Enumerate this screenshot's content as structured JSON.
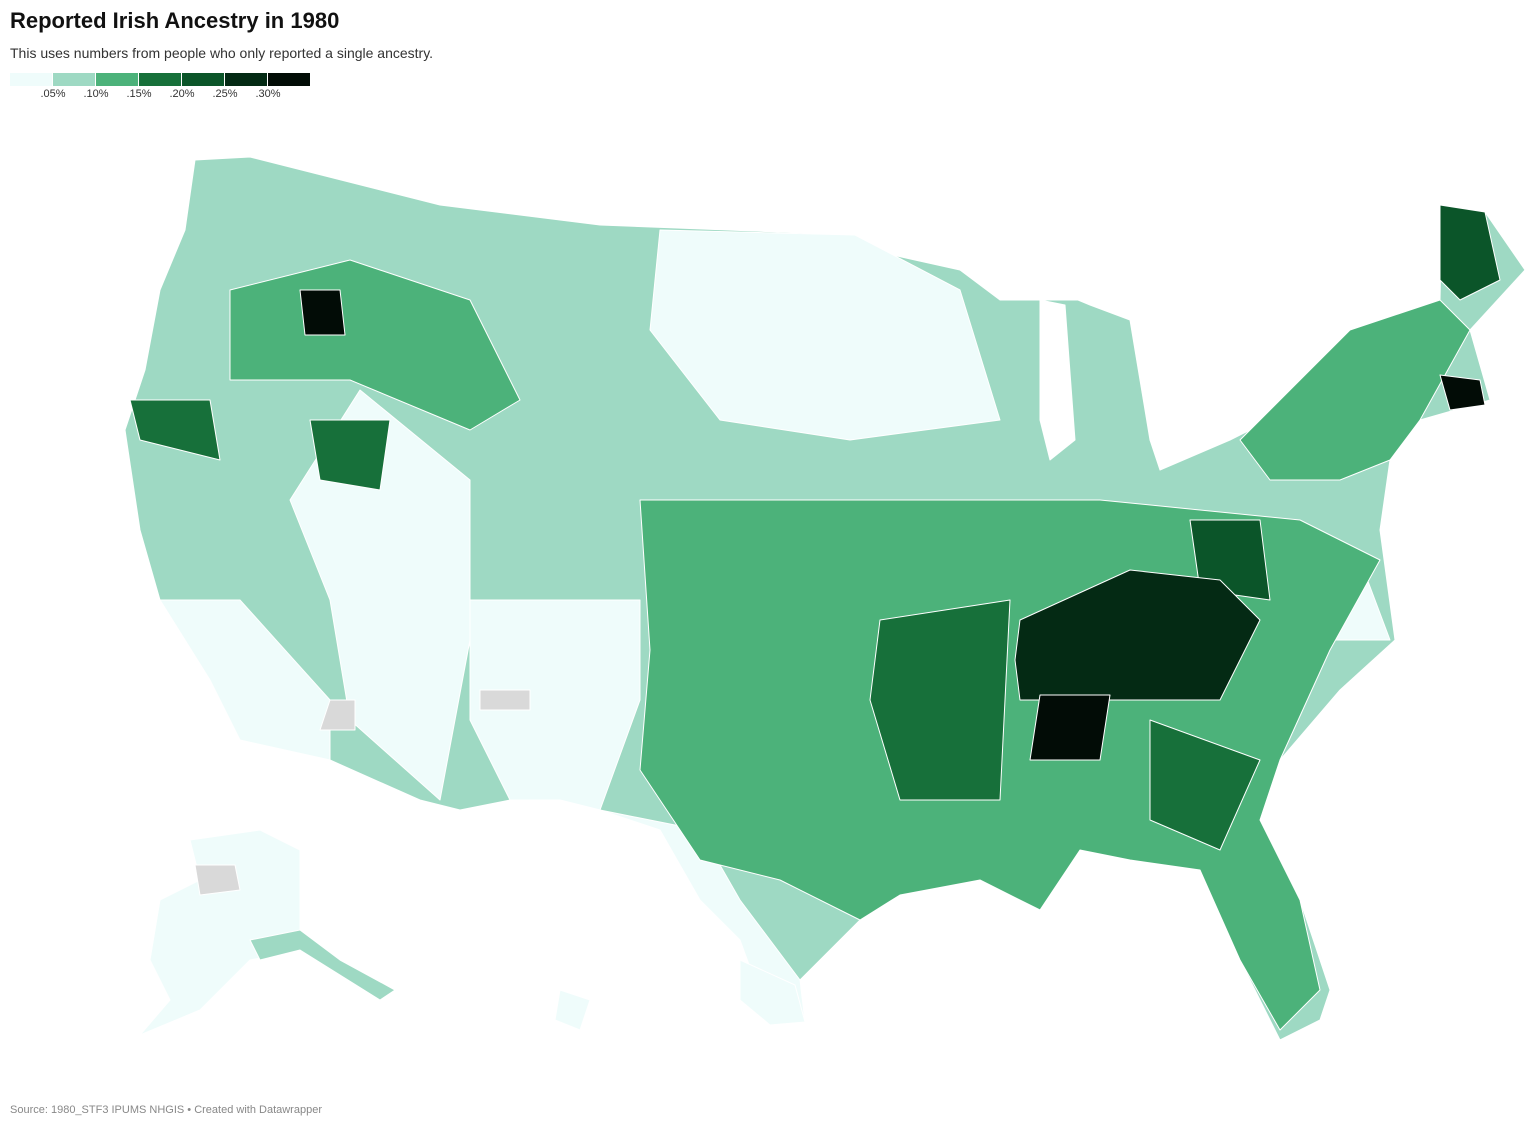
{
  "header": {
    "title": "Reported Irish Ancestry in 1980",
    "subtitle": "This uses numbers from people who only reported a single ancestry."
  },
  "legend": {
    "colors": [
      "#effcfb",
      "#9ed9c3",
      "#4cb27a",
      "#17703a",
      "#0b5529",
      "#042a14",
      "#020c06"
    ],
    "ticks": [
      ".05%",
      ".10%",
      ".15%",
      ".20%",
      ".25%",
      ".30%"
    ],
    "no_data_color": "#d9d9d9"
  },
  "footer": {
    "source": "Source: 1980_STF3 IPUMS NHGIS • Created with Datawrapper"
  }
}
